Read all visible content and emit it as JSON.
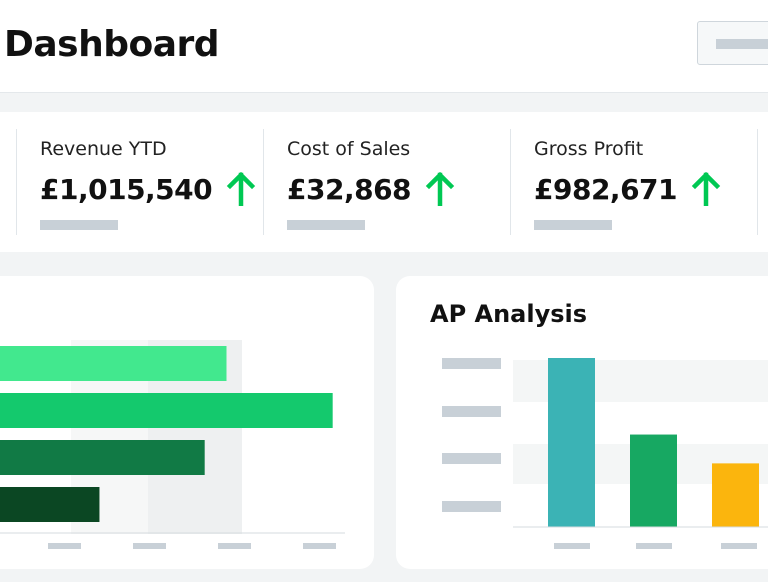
{
  "header": {
    "title": "Dashboard"
  },
  "kpis": [
    {
      "label": "Revenue YTD",
      "value": "£1,015,540",
      "trend": "up",
      "trend_icon": "arrow-up-icon",
      "trend_color": "#00c853"
    },
    {
      "label": "Cost of Sales",
      "value": "£32,868",
      "trend": "up",
      "trend_icon": "arrow-up-icon",
      "trend_color": "#00c853"
    },
    {
      "label": "Gross Profit",
      "value": "£982,671",
      "trend": "up",
      "trend_icon": "arrow-up-icon",
      "trend_color": "#00c853"
    }
  ],
  "ap_analysis": {
    "title": "AP Analysis"
  },
  "chart_data": [
    {
      "type": "bar",
      "orientation": "horizontal",
      "title": "",
      "values": [
        260,
        372,
        237,
        126
      ],
      "xlim": [
        0,
        385
      ],
      "colors": [
        "#42e88e",
        "#14c96d",
        "#117a45",
        "#0b4723"
      ],
      "grid": false
    },
    {
      "type": "bar",
      "title": "AP Analysis",
      "values": [
        170,
        93,
        64
      ],
      "ylim": [
        0,
        170
      ],
      "colors": [
        "#3bb3b5",
        "#17a862",
        "#fbb50d"
      ],
      "grid": false
    }
  ]
}
